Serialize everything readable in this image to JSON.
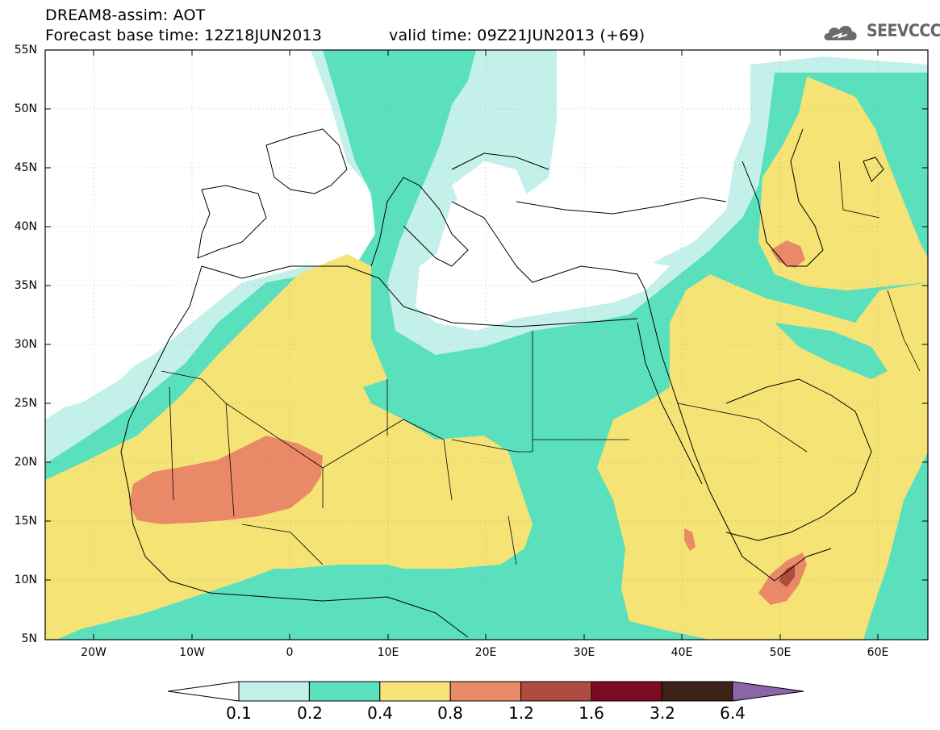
{
  "header": {
    "title": "DREAM8-assim: AOT",
    "base_time": "Forecast base time: 12Z18JUN2013",
    "valid_time": "valid time: 09Z21JUN2013 (+69)"
  },
  "logo": {
    "text": "SEEVCCC",
    "icon": "cloud-logo-icon"
  },
  "map": {
    "lat_labels": [
      "55N",
      "50N",
      "45N",
      "40N",
      "35N",
      "30N",
      "25N",
      "20N",
      "15N",
      "10N",
      "5N"
    ],
    "lon_labels": [
      "20W",
      "10W",
      "0",
      "10E",
      "20E",
      "30E",
      "40E",
      "50E",
      "60E"
    ],
    "colors": {
      "c01": "#c4f0ea",
      "c02": "#5be0be",
      "c04": "#f5e375",
      "c08": "#ea8968",
      "c12": "#ad4c3f",
      "c16": "#7b0b22",
      "c32": "#3c2317",
      "c64": "#8a65a8"
    }
  },
  "colorbar": {
    "labels": [
      "0.1",
      "0.2",
      "0.4",
      "0.8",
      "1.2",
      "1.6",
      "3.2",
      "6.4"
    ]
  }
}
